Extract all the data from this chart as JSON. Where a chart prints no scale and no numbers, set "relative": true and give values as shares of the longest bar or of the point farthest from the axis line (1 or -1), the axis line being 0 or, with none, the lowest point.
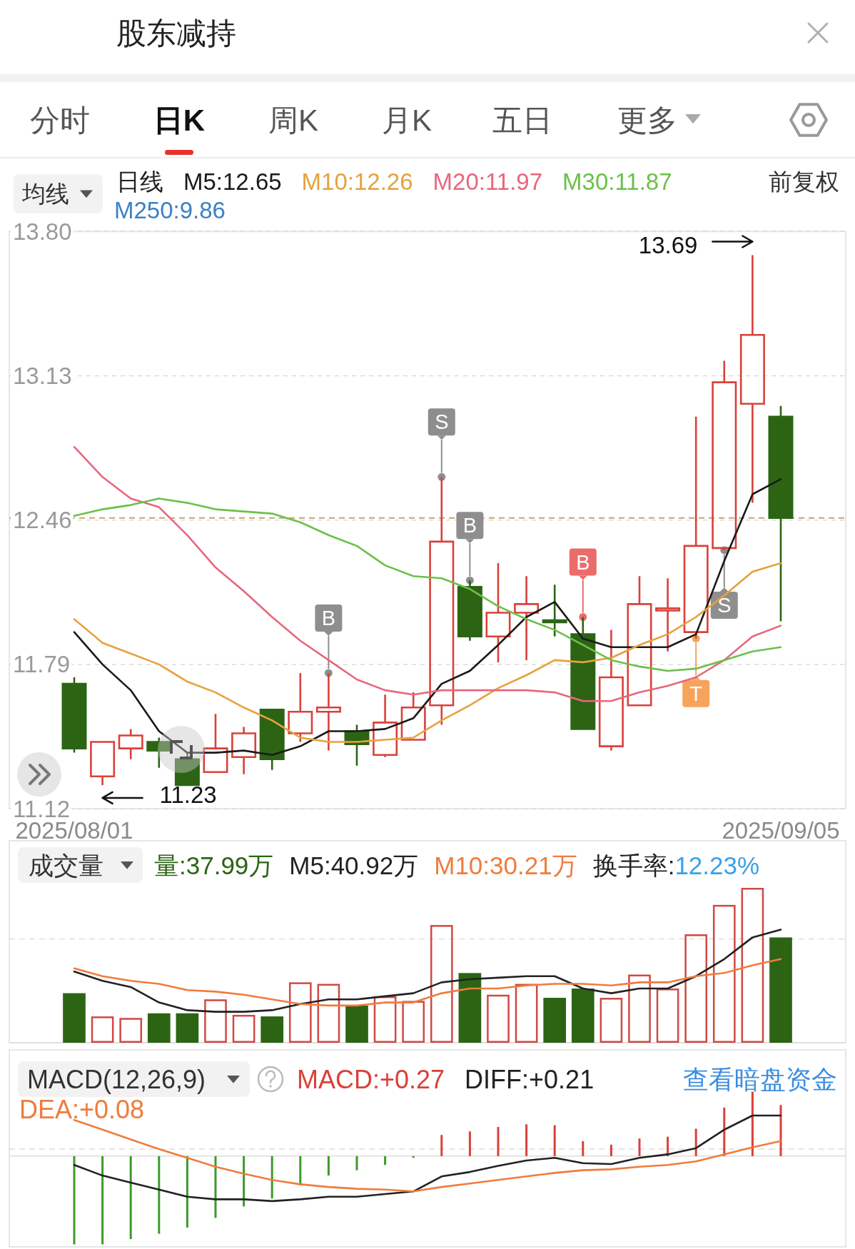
{
  "chart_data": [
    {
      "type": "other",
      "title": "股东减持",
      "annotations": [
        "分时",
        "日K",
        "周K",
        "月K",
        "五日",
        "更多"
      ]
    },
    {
      "type": "candlestick",
      "categories": [
        "2025/08/01",
        null,
        null,
        null,
        null,
        null,
        null,
        null,
        null,
        null,
        null,
        null,
        null,
        null,
        null,
        null,
        null,
        null,
        null,
        null,
        null,
        null,
        null,
        null,
        null,
        "2025/09/05"
      ],
      "ohlc": [
        [
          11.7,
          11.73,
          11.38,
          11.4
        ],
        [
          11.27,
          11.43,
          11.23,
          11.43
        ],
        [
          11.4,
          11.49,
          11.35,
          11.46
        ],
        [
          11.43,
          11.45,
          11.31,
          11.39
        ],
        [
          11.35,
          11.38,
          11.23,
          11.23
        ],
        [
          11.29,
          11.56,
          11.29,
          11.4
        ],
        [
          11.36,
          11.5,
          11.28,
          11.47
        ],
        [
          11.58,
          11.58,
          11.3,
          11.35
        ],
        [
          11.47,
          11.75,
          11.43,
          11.57
        ],
        [
          11.57,
          11.75,
          11.39,
          11.59
        ],
        [
          11.48,
          11.51,
          11.32,
          11.42
        ],
        [
          11.37,
          11.65,
          11.36,
          11.52
        ],
        [
          11.44,
          11.66,
          11.44,
          11.59
        ],
        [
          11.6,
          12.66,
          11.51,
          12.36
        ],
        [
          12.15,
          12.18,
          11.9,
          11.92
        ],
        [
          11.92,
          12.26,
          11.8,
          12.03
        ],
        [
          12.03,
          12.2,
          11.81,
          12.07
        ],
        [
          11.99,
          12.16,
          11.92,
          11.99
        ],
        [
          11.93,
          12.01,
          11.49,
          11.49
        ],
        [
          11.41,
          11.95,
          11.39,
          11.73
        ],
        [
          11.6,
          12.2,
          11.6,
          12.07
        ],
        [
          12.04,
          12.19,
          11.85,
          12.05
        ],
        [
          11.94,
          12.94,
          11.91,
          12.34
        ],
        [
          12.33,
          13.2,
          12.32,
          13.1
        ],
        [
          13.0,
          13.69,
          12.54,
          13.32
        ],
        [
          12.94,
          12.99,
          11.99,
          12.47
        ]
      ],
      "colors": [
        "#2c6414",
        "#d9413a",
        "#d9413a",
        "#2c6414",
        "#2c6414",
        "#d9413a",
        "#d9413a",
        "#2c6414",
        "#d9413a",
        "#d9413a",
        "#2c6414",
        "#d9413a",
        "#d9413a",
        "#d9413a",
        "#2c6414",
        "#d9413a",
        "#d9413a",
        "#2c6414",
        "#2c6414",
        "#d9413a",
        "#d9413a",
        "#d9413a",
        "#d9413a",
        "#d9413a",
        "#d9413a",
        "#2c6414"
      ],
      "ylim": [
        11.12,
        13.8
      ],
      "yticks": [
        11.12,
        11.79,
        12.46,
        13.13,
        {
          "value": 13.8,
          "label": "13.80"
        }
      ],
      "grid": "y",
      "legend": "top",
      "legend_title": "日线",
      "series": [
        {
          "name": "M5:12.65",
          "type": "line",
          "color": "#1a1a1a",
          "values": [
            11.94,
            11.79,
            11.67,
            11.48,
            11.38,
            11.38,
            11.39,
            11.37,
            11.41,
            11.48,
            11.48,
            11.49,
            11.54,
            11.7,
            11.76,
            11.88,
            12.01,
            12.08,
            11.91,
            11.87,
            11.87,
            11.87,
            11.93,
            12.27,
            12.58,
            12.65
          ]
        },
        {
          "name": "M10:12.26",
          "type": "line",
          "color": "#e6a23c",
          "values": [
            12.0,
            11.89,
            11.84,
            11.79,
            11.71,
            11.66,
            11.59,
            11.53,
            11.45,
            11.43,
            11.43,
            11.44,
            11.45,
            11.53,
            11.6,
            11.68,
            11.74,
            11.81,
            11.8,
            11.82,
            11.88,
            11.93,
            12.01,
            12.11,
            12.22,
            12.26
          ]
        },
        {
          "name": "M20:11.97",
          "type": "line",
          "color": "#e8677c",
          "values": [
            12.8,
            12.66,
            12.56,
            12.52,
            12.39,
            12.24,
            12.13,
            12.01,
            11.9,
            11.81,
            11.72,
            11.67,
            11.65,
            11.67,
            11.67,
            11.67,
            11.67,
            11.66,
            11.62,
            11.62,
            11.66,
            11.69,
            11.73,
            11.81,
            11.92,
            11.97
          ]
        },
        {
          "name": "M30:11.87",
          "type": "line",
          "color": "#6cc04a",
          "values": [
            12.48,
            12.51,
            12.53,
            12.56,
            12.54,
            12.51,
            12.5,
            12.49,
            12.45,
            12.39,
            12.34,
            12.25,
            12.2,
            12.19,
            12.14,
            12.06,
            12.0,
            11.95,
            11.88,
            11.81,
            11.78,
            11.76,
            11.77,
            11.81,
            11.85,
            11.87
          ]
        },
        {
          "type": "scatter",
          "marker": "circle",
          "values": [
            null,
            null,
            null,
            null,
            null,
            null,
            null,
            null,
            null,
            11.75,
            null,
            null,
            null,
            12.66,
            12.18,
            null,
            null,
            null,
            12.01,
            null,
            null,
            null,
            11.91,
            12.32,
            null,
            null
          ],
          "colors": [
            null,
            null,
            null,
            null,
            null,
            null,
            null,
            null,
            null,
            "#8e8e8e",
            null,
            null,
            null,
            "#8e8e8e",
            "#8e8e8e",
            null,
            null,
            null,
            "#ec6b6b",
            null,
            null,
            null,
            "#f7a35c",
            "#8e8e8e",
            null,
            null
          ],
          "value_labels": [
            null,
            null,
            null,
            null,
            null,
            null,
            null,
            null,
            null,
            "B",
            null,
            null,
            null,
            "S",
            "B",
            null,
            null,
            null,
            "B",
            null,
            null,
            null,
            "T",
            "S",
            null,
            null
          ]
        }
      ],
      "ref_lines": [
        {
          "axis": "y",
          "value": 12.47,
          "line_style": "dashed",
          "color": "#c9a46e"
        }
      ],
      "annotations": [
        "均线",
        "前复权",
        "M250:9.86",
        "13.69",
        "11.23"
      ]
    },
    {
      "type": "bar",
      "relative": true,
      "categories": [
        null,
        null,
        null,
        null,
        null,
        null,
        null,
        null,
        null,
        null,
        null,
        null,
        null,
        null,
        null,
        null,
        null,
        null,
        null,
        null,
        null,
        null,
        null,
        null,
        null,
        null
      ],
      "legend": "top",
      "series": [
        {
          "name": "量:37.99万",
          "type": "bar",
          "colors": [
            "#2c6414",
            "#cf4a44",
            "#cf4a44",
            "#2c6414",
            "#2c6414",
            "#cf4a44",
            "#cf4a44",
            "#2c6414",
            "#cf4a44",
            "#cf4a44",
            "#2c6414",
            "#cf4a44",
            "#cf4a44",
            "#cf4a44",
            "#2c6414",
            "#cf4a44",
            "#cf4a44",
            "#2c6414",
            "#2c6414",
            "#cf4a44",
            "#cf4a44",
            "#cf4a44",
            "#cf4a44",
            "#cf4a44",
            "#cf4a44",
            "#2c6414"
          ],
          "values": [
            0.32,
            0.17,
            0.16,
            0.19,
            0.19,
            0.28,
            0.18,
            0.17,
            0.39,
            0.38,
            0.24,
            0.3,
            0.27,
            0.76,
            0.45,
            0.31,
            0.38,
            0.29,
            0.35,
            0.29,
            0.44,
            0.35,
            0.7,
            0.89,
            1,
            0.68
          ]
        },
        {
          "name": "M5:40.92万",
          "type": "line",
          "color": "#222222",
          "values": [
            0.46,
            0.4,
            0.36,
            0.26,
            0.21,
            0.2,
            0.2,
            0.21,
            0.25,
            0.28,
            0.28,
            0.3,
            0.32,
            0.39,
            0.41,
            0.42,
            0.43,
            0.43,
            0.35,
            0.32,
            0.35,
            0.35,
            0.43,
            0.54,
            0.68,
            0.73
          ]
        },
        {
          "name": "M10:30.21万",
          "type": "line",
          "color": "#f07c3c",
          "values": [
            0.48,
            0.43,
            0.4,
            0.38,
            0.34,
            0.33,
            0.31,
            0.28,
            0.25,
            0.24,
            0.24,
            0.26,
            0.26,
            0.32,
            0.35,
            0.35,
            0.37,
            0.38,
            0.38,
            0.37,
            0.39,
            0.39,
            0.43,
            0.45,
            0.5,
            0.54
          ]
        }
      ],
      "ref_lines": [
        {
          "axis": "y",
          "value": 0.67,
          "line_style": "dashed",
          "color": "#dddddd"
        }
      ],
      "annotations": [
        "成交量",
        "换手率:12.23%"
      ]
    },
    {
      "type": "bar",
      "relative": true,
      "categories": [
        null,
        null,
        null,
        null,
        null,
        null,
        null,
        null,
        null,
        null,
        null,
        null,
        null,
        null,
        null,
        null,
        null,
        null,
        null,
        null,
        null,
        null,
        null,
        null,
        null,
        null
      ],
      "legend": "top",
      "series": [
        {
          "name": "MACD:+0.27",
          "type": "bar",
          "colors": [
            "#3d9a2b",
            "#3d9a2b",
            "#3d9a2b",
            "#3d9a2b",
            "#3d9a2b",
            "#3d9a2b",
            "#3d9a2b",
            "#3d9a2b",
            "#3d9a2b",
            "#3d9a2b",
            "#3d9a2b",
            "#3d9a2b",
            "#3d9a2b",
            "#d9413a",
            "#d9413a",
            "#d9413a",
            "#d9413a",
            "#d9413a",
            "#d9413a",
            "#d9413a",
            "#d9413a",
            "#d9413a",
            "#d9413a",
            "#d9413a",
            "#d9413a",
            "#d9413a"
          ],
          "values": [
            -1,
            -1,
            -0.94,
            -0.88,
            -0.81,
            -0.7,
            -0.57,
            -0.48,
            -0.33,
            -0.22,
            -0.16,
            -0.1,
            -0.02,
            0.24,
            0.28,
            0.33,
            0.36,
            0.35,
            0.17,
            0.13,
            0.2,
            0.22,
            0.31,
            0.55,
            0.73,
            0.58
          ]
        },
        {
          "name": "DIFF:+0.21",
          "type": "line",
          "color": "#222222",
          "values": [
            -0.1,
            -0.22,
            -0.3,
            -0.38,
            -0.46,
            -0.49,
            -0.49,
            -0.51,
            -0.49,
            -0.46,
            -0.46,
            -0.43,
            -0.4,
            -0.23,
            -0.18,
            -0.11,
            -0.05,
            -0.02,
            -0.08,
            -0.09,
            -0.02,
            0.02,
            0.09,
            0.3,
            0.46,
            0.46
          ]
        },
        {
          "name": "DEA:+0.08",
          "type": "line",
          "color": "#f07c3c",
          "values": [
            0.41,
            0.3,
            0.19,
            0.08,
            -0.02,
            -0.12,
            -0.2,
            -0.27,
            -0.32,
            -0.35,
            -0.37,
            -0.38,
            -0.4,
            -0.35,
            -0.31,
            -0.27,
            -0.23,
            -0.19,
            -0.16,
            -0.15,
            -0.12,
            -0.1,
            -0.06,
            0.02,
            0.1,
            0.17
          ]
        }
      ],
      "ref_lines": [
        {
          "axis": "y",
          "value": 0.08,
          "line_style": "dashed",
          "color": "#dddddd"
        }
      ],
      "annotations": [
        "MACD(12,26,9)",
        "查看暗盘资金"
      ]
    }
  ]
}
